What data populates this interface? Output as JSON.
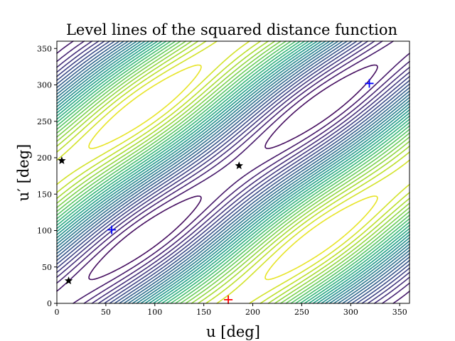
{
  "chart_data": {
    "type": "contour",
    "title": "Level lines of the squared distance function",
    "xlabel": "u [deg]",
    "ylabel": "u′ [deg]",
    "xlim": [
      0,
      360
    ],
    "ylim": [
      0,
      360
    ],
    "xticks": [
      0,
      50,
      100,
      150,
      200,
      250,
      300,
      350
    ],
    "yticks": [
      0,
      50,
      100,
      150,
      200,
      250,
      300,
      350
    ],
    "colormap": "viridis",
    "grid": false,
    "maxima": [
      {
        "x": 175,
        "y": 5,
        "marker": "+",
        "color": "#ff0000"
      }
    ],
    "minima": [
      {
        "x": 56,
        "y": 101,
        "marker": "+",
        "color": "#0000ff"
      },
      {
        "x": 319,
        "y": 302,
        "marker": "+",
        "color": "#0000ff"
      }
    ],
    "saddles": [
      {
        "x": 186,
        "y": 189,
        "marker": "star",
        "color": "#000000"
      },
      {
        "x": 5,
        "y": 196,
        "marker": "star",
        "color": "#000000"
      },
      {
        "x": 12,
        "y": 31,
        "marker": "star",
        "color": "#000000"
      }
    ]
  }
}
